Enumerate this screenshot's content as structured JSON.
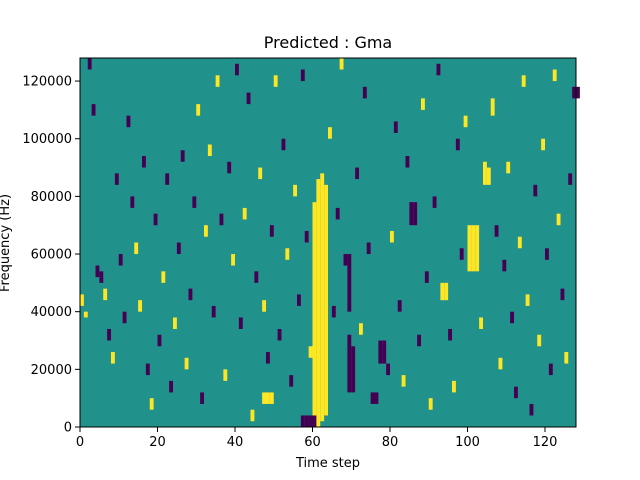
{
  "chart_data": {
    "type": "heatmap",
    "title": "Predicted : Gma",
    "xlabel": "Time step",
    "ylabel": "Frequency (Hz)",
    "xlim": [
      0,
      128
    ],
    "ylim": [
      0,
      128000
    ],
    "x_ticks": [
      0,
      20,
      40,
      60,
      80,
      100,
      120
    ],
    "y_ticks": [
      0,
      20000,
      40000,
      60000,
      80000,
      100000,
      120000
    ],
    "x_tick_labels": [
      "0",
      "20",
      "40",
      "60",
      "80",
      "100",
      "120"
    ],
    "y_tick_labels": [
      "0",
      "20000",
      "40000",
      "60000",
      "80000",
      "100000",
      "120000"
    ],
    "colors": {
      "low": "#440154",
      "mid": "#21918c",
      "high": "#fde725"
    },
    "background_level": 0,
    "num_time_steps": 128,
    "num_bins": 64,
    "bin_width_hz": 2000,
    "cells": [
      {
        "t": 60,
        "f_from": 0,
        "f_to": 78000,
        "v": 1
      },
      {
        "t": 61,
        "f_from": 0,
        "f_to": 86000,
        "v": 1
      },
      {
        "t": 62,
        "f_from": 2000,
        "f_to": 88000,
        "v": 1
      },
      {
        "t": 63,
        "f_from": 4000,
        "f_to": 84000,
        "v": 1
      },
      {
        "t": 57,
        "f_from": 0,
        "f_to": 4000,
        "v": -1
      },
      {
        "t": 58,
        "f_from": 0,
        "f_to": 4000,
        "v": -1
      },
      {
        "t": 59,
        "f_from": 0,
        "f_to": 4000,
        "v": -1
      },
      {
        "t": 60,
        "f_from": 0,
        "f_to": 4000,
        "v": -1
      },
      {
        "t": 100,
        "f_from": 54000,
        "f_to": 70000,
        "v": 1
      },
      {
        "t": 101,
        "f_from": 54000,
        "f_to": 70000,
        "v": 1
      },
      {
        "t": 102,
        "f_from": 54000,
        "f_to": 70000,
        "v": 1
      },
      {
        "t": 47,
        "f_from": 8000,
        "f_to": 12000,
        "v": 1
      },
      {
        "t": 48,
        "f_from": 8000,
        "f_to": 12000,
        "v": 1
      },
      {
        "t": 49,
        "f_from": 8000,
        "f_to": 12000,
        "v": 1
      },
      {
        "t": 69,
        "f_from": 12000,
        "f_to": 32000,
        "v": -1
      },
      {
        "t": 69,
        "f_from": 40000,
        "f_to": 60000,
        "v": -1
      },
      {
        "t": 70,
        "f_from": 12000,
        "f_to": 28000,
        "v": -1
      },
      {
        "t": 75,
        "f_from": 8000,
        "f_to": 12000,
        "v": -1
      },
      {
        "t": 76,
        "f_from": 8000,
        "f_to": 12000,
        "v": -1
      },
      {
        "t": 77,
        "f_from": 22000,
        "f_to": 30000,
        "v": -1
      },
      {
        "t": 78,
        "f_from": 22000,
        "f_to": 30000,
        "v": -1
      },
      {
        "t": 85,
        "f_from": 70000,
        "f_to": 78000,
        "v": -1
      },
      {
        "t": 86,
        "f_from": 70000,
        "f_to": 78000,
        "v": -1
      },
      {
        "t": 127,
        "f_from": 114000,
        "f_to": 118000,
        "v": -1
      },
      {
        "t": 128,
        "f_from": 114000,
        "f_to": 118000,
        "v": -1
      },
      {
        "t": 104,
        "f_from": 84000,
        "f_to": 92000,
        "v": 1
      },
      {
        "t": 105,
        "f_from": 84000,
        "f_to": 90000,
        "v": 1
      },
      {
        "t": 106,
        "f_from": 108000,
        "f_to": 114000,
        "v": 1
      },
      {
        "t": 93,
        "f_from": 44000,
        "f_to": 50000,
        "v": 1
      },
      {
        "t": 94,
        "f_from": 44000,
        "f_to": 50000,
        "v": 1
      },
      {
        "t": 0,
        "f_from": 42000,
        "f_to": 46000,
        "v": 1
      },
      {
        "t": 1,
        "f_from": 38000,
        "f_to": 40000,
        "v": 1
      },
      {
        "t": 2,
        "f_from": 124000,
        "f_to": 128000,
        "v": -1
      },
      {
        "t": 3,
        "f_from": 108000,
        "f_to": 112000,
        "v": -1
      },
      {
        "t": 4,
        "f_from": 52000,
        "f_to": 56000,
        "v": -1
      },
      {
        "t": 5,
        "f_from": 50000,
        "f_to": 54000,
        "v": -1
      },
      {
        "t": 6,
        "f_from": 44000,
        "f_to": 48000,
        "v": 1
      },
      {
        "t": 7,
        "f_from": 30000,
        "f_to": 34000,
        "v": -1
      },
      {
        "t": 8,
        "f_from": 22000,
        "f_to": 26000,
        "v": 1
      },
      {
        "t": 9,
        "f_from": 84000,
        "f_to": 88000,
        "v": -1
      },
      {
        "t": 10,
        "f_from": 56000,
        "f_to": 60000,
        "v": -1
      },
      {
        "t": 11,
        "f_from": 36000,
        "f_to": 40000,
        "v": -1
      },
      {
        "t": 12,
        "f_from": 104000,
        "f_to": 108000,
        "v": -1
      },
      {
        "t": 13,
        "f_from": 76000,
        "f_to": 80000,
        "v": -1
      },
      {
        "t": 14,
        "f_from": 60000,
        "f_to": 64000,
        "v": 1
      },
      {
        "t": 15,
        "f_from": 40000,
        "f_to": 44000,
        "v": 1
      },
      {
        "t": 16,
        "f_from": 90000,
        "f_to": 94000,
        "v": -1
      },
      {
        "t": 17,
        "f_from": 18000,
        "f_to": 22000,
        "v": -1
      },
      {
        "t": 18,
        "f_from": 6000,
        "f_to": 10000,
        "v": 1
      },
      {
        "t": 19,
        "f_from": 70000,
        "f_to": 74000,
        "v": -1
      },
      {
        "t": 20,
        "f_from": 28000,
        "f_to": 32000,
        "v": -1
      },
      {
        "t": 21,
        "f_from": 50000,
        "f_to": 54000,
        "v": 1
      },
      {
        "t": 22,
        "f_from": 84000,
        "f_to": 88000,
        "v": -1
      },
      {
        "t": 23,
        "f_from": 12000,
        "f_to": 16000,
        "v": -1
      },
      {
        "t": 24,
        "f_from": 34000,
        "f_to": 38000,
        "v": 1
      },
      {
        "t": 25,
        "f_from": 60000,
        "f_to": 64000,
        "v": -1
      },
      {
        "t": 26,
        "f_from": 92000,
        "f_to": 96000,
        "v": -1
      },
      {
        "t": 27,
        "f_from": 20000,
        "f_to": 24000,
        "v": 1
      },
      {
        "t": 28,
        "f_from": 44000,
        "f_to": 48000,
        "v": -1
      },
      {
        "t": 29,
        "f_from": 76000,
        "f_to": 80000,
        "v": -1
      },
      {
        "t": 30,
        "f_from": 108000,
        "f_to": 112000,
        "v": 1
      },
      {
        "t": 31,
        "f_from": 8000,
        "f_to": 12000,
        "v": -1
      },
      {
        "t": 32,
        "f_from": 66000,
        "f_to": 70000,
        "v": 1
      },
      {
        "t": 33,
        "f_from": 94000,
        "f_to": 98000,
        "v": 1
      },
      {
        "t": 34,
        "f_from": 38000,
        "f_to": 42000,
        "v": -1
      },
      {
        "t": 35,
        "f_from": 118000,
        "f_to": 122000,
        "v": 1
      },
      {
        "t": 36,
        "f_from": 70000,
        "f_to": 74000,
        "v": -1
      },
      {
        "t": 37,
        "f_from": 16000,
        "f_to": 20000,
        "v": 1
      },
      {
        "t": 38,
        "f_from": 88000,
        "f_to": 92000,
        "v": -1
      },
      {
        "t": 39,
        "f_from": 56000,
        "f_to": 60000,
        "v": 1
      },
      {
        "t": 40,
        "f_from": 122000,
        "f_to": 126000,
        "v": -1
      },
      {
        "t": 41,
        "f_from": 34000,
        "f_to": 38000,
        "v": -1
      },
      {
        "t": 42,
        "f_from": 72000,
        "f_to": 76000,
        "v": 1
      },
      {
        "t": 43,
        "f_from": 112000,
        "f_to": 116000,
        "v": -1
      },
      {
        "t": 44,
        "f_from": 2000,
        "f_to": 6000,
        "v": 1
      },
      {
        "t": 45,
        "f_from": 50000,
        "f_to": 54000,
        "v": -1
      },
      {
        "t": 46,
        "f_from": 86000,
        "f_to": 90000,
        "v": 1
      },
      {
        "t": 47,
        "f_from": 40000,
        "f_to": 44000,
        "v": 1
      },
      {
        "t": 48,
        "f_from": 22000,
        "f_to": 26000,
        "v": -1
      },
      {
        "t": 49,
        "f_from": 66000,
        "f_to": 70000,
        "v": -1
      },
      {
        "t": 50,
        "f_from": 118000,
        "f_to": 122000,
        "v": 1
      },
      {
        "t": 51,
        "f_from": 30000,
        "f_to": 34000,
        "v": -1
      },
      {
        "t": 52,
        "f_from": 96000,
        "f_to": 100000,
        "v": -1
      },
      {
        "t": 53,
        "f_from": 58000,
        "f_to": 62000,
        "v": 1
      },
      {
        "t": 54,
        "f_from": 14000,
        "f_to": 18000,
        "v": -1
      },
      {
        "t": 55,
        "f_from": 80000,
        "f_to": 84000,
        "v": 1
      },
      {
        "t": 56,
        "f_from": 42000,
        "f_to": 46000,
        "v": -1
      },
      {
        "t": 57,
        "f_from": 120000,
        "f_to": 124000,
        "v": -1
      },
      {
        "t": 58,
        "f_from": 64000,
        "f_to": 68000,
        "v": -1
      },
      {
        "t": 59,
        "f_from": 24000,
        "f_to": 28000,
        "v": 1
      },
      {
        "t": 64,
        "f_from": 100000,
        "f_to": 104000,
        "v": 1
      },
      {
        "t": 65,
        "f_from": 38000,
        "f_to": 42000,
        "v": -1
      },
      {
        "t": 66,
        "f_from": 72000,
        "f_to": 76000,
        "v": -1
      },
      {
        "t": 67,
        "f_from": 124000,
        "f_to": 128000,
        "v": 1
      },
      {
        "t": 68,
        "f_from": 56000,
        "f_to": 60000,
        "v": -1
      },
      {
        "t": 71,
        "f_from": 86000,
        "f_to": 90000,
        "v": -1
      },
      {
        "t": 72,
        "f_from": 32000,
        "f_to": 36000,
        "v": 1
      },
      {
        "t": 73,
        "f_from": 114000,
        "f_to": 118000,
        "v": -1
      },
      {
        "t": 74,
        "f_from": 60000,
        "f_to": 64000,
        "v": -1
      },
      {
        "t": 79,
        "f_from": 18000,
        "f_to": 22000,
        "v": -1
      },
      {
        "t": 80,
        "f_from": 64000,
        "f_to": 68000,
        "v": 1
      },
      {
        "t": 81,
        "f_from": 102000,
        "f_to": 106000,
        "v": -1
      },
      {
        "t": 82,
        "f_from": 40000,
        "f_to": 44000,
        "v": -1
      },
      {
        "t": 83,
        "f_from": 14000,
        "f_to": 18000,
        "v": 1
      },
      {
        "t": 84,
        "f_from": 90000,
        "f_to": 94000,
        "v": -1
      },
      {
        "t": 87,
        "f_from": 28000,
        "f_to": 32000,
        "v": -1
      },
      {
        "t": 88,
        "f_from": 110000,
        "f_to": 114000,
        "v": 1
      },
      {
        "t": 89,
        "f_from": 50000,
        "f_to": 54000,
        "v": -1
      },
      {
        "t": 90,
        "f_from": 6000,
        "f_to": 10000,
        "v": 1
      },
      {
        "t": 91,
        "f_from": 76000,
        "f_to": 80000,
        "v": -1
      },
      {
        "t": 92,
        "f_from": 122000,
        "f_to": 126000,
        "v": -1
      },
      {
        "t": 95,
        "f_from": 30000,
        "f_to": 34000,
        "v": -1
      },
      {
        "t": 96,
        "f_from": 12000,
        "f_to": 16000,
        "v": 1
      },
      {
        "t": 97,
        "f_from": 96000,
        "f_to": 100000,
        "v": -1
      },
      {
        "t": 98,
        "f_from": 58000,
        "f_to": 62000,
        "v": -1
      },
      {
        "t": 99,
        "f_from": 104000,
        "f_to": 108000,
        "v": 1
      },
      {
        "t": 103,
        "f_from": 34000,
        "f_to": 38000,
        "v": 1
      },
      {
        "t": 107,
        "f_from": 66000,
        "f_to": 70000,
        "v": -1
      },
      {
        "t": 108,
        "f_from": 20000,
        "f_to": 24000,
        "v": 1
      },
      {
        "t": 109,
        "f_from": 54000,
        "f_to": 58000,
        "v": -1
      },
      {
        "t": 110,
        "f_from": 88000,
        "f_to": 92000,
        "v": 1
      },
      {
        "t": 111,
        "f_from": 36000,
        "f_to": 40000,
        "v": -1
      },
      {
        "t": 112,
        "f_from": 10000,
        "f_to": 14000,
        "v": -1
      },
      {
        "t": 113,
        "f_from": 62000,
        "f_to": 66000,
        "v": 1
      },
      {
        "t": 114,
        "f_from": 118000,
        "f_to": 122000,
        "v": 1
      },
      {
        "t": 115,
        "f_from": 42000,
        "f_to": 46000,
        "v": 1
      },
      {
        "t": 116,
        "f_from": 4000,
        "f_to": 8000,
        "v": -1
      },
      {
        "t": 117,
        "f_from": 80000,
        "f_to": 84000,
        "v": -1
      },
      {
        "t": 118,
        "f_from": 28000,
        "f_to": 32000,
        "v": 1
      },
      {
        "t": 119,
        "f_from": 96000,
        "f_to": 100000,
        "v": 1
      },
      {
        "t": 120,
        "f_from": 58000,
        "f_to": 62000,
        "v": -1
      },
      {
        "t": 121,
        "f_from": 18000,
        "f_to": 22000,
        "v": -1
      },
      {
        "t": 122,
        "f_from": 120000,
        "f_to": 124000,
        "v": 1
      },
      {
        "t": 123,
        "f_from": 70000,
        "f_to": 74000,
        "v": 1
      },
      {
        "t": 124,
        "f_from": 44000,
        "f_to": 48000,
        "v": -1
      },
      {
        "t": 125,
        "f_from": 22000,
        "f_to": 26000,
        "v": 1
      },
      {
        "t": 126,
        "f_from": 84000,
        "f_to": 88000,
        "v": -1
      }
    ]
  }
}
